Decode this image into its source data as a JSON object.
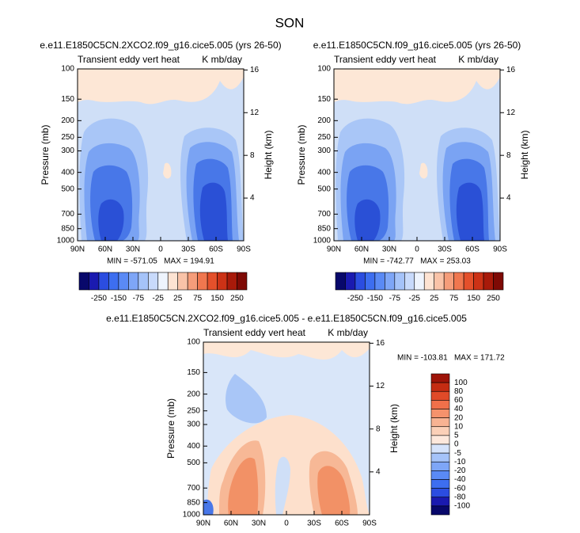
{
  "title": "SON",
  "chart_data": [
    {
      "type": "contour",
      "title": "e.e11.E1850C5CN.2XCO2.f09_g16.cice5.005 (yrs 26-50)",
      "left_string": "Transient eddy vert heat",
      "right_string": "K mb/day",
      "ylabel": "Pressure (mb)",
      "y2label": "Height (km)",
      "yscale": "log",
      "ylim": [
        1000,
        100
      ],
      "yticks": [
        1000,
        850,
        700,
        500,
        400,
        300,
        250,
        200,
        150,
        100
      ],
      "y2lim": [
        0,
        16.1
      ],
      "y2ticks": [
        4,
        8,
        12,
        16
      ],
      "xlim": [
        90,
        -90
      ],
      "xticks": [
        {
          "value": 90,
          "label": "90N"
        },
        {
          "value": 60,
          "label": "60N"
        },
        {
          "value": 30,
          "label": "30N"
        },
        0,
        {
          "value": -30,
          "label": "30S"
        },
        {
          "value": -60,
          "label": "60S"
        },
        {
          "value": -90,
          "label": "90S"
        }
      ],
      "min_max": "MIN = -571.05   MAX = 194.91",
      "colorbar": {
        "orientation": "horizontal",
        "colors": [
          "#08086b",
          "#1a1ab0",
          "#2b4de0",
          "#3d6ef0",
          "#5a8af5",
          "#7ea6f7",
          "#a5c3f9",
          "#c8dafb",
          "#eef4fd",
          "#fde3d2",
          "#f9c3a8",
          "#f59d7a",
          "#f0774f",
          "#e4502b",
          "#cc3216",
          "#a81a0a",
          "#7e0a05"
        ],
        "labels": [
          -250,
          -150,
          -75,
          -25,
          25,
          75,
          150,
          250
        ]
      }
    },
    {
      "type": "contour",
      "title": "e.e11.E1850C5CN.f09_g16.cice5.005 (yrs 26-50)",
      "left_string": "Transient eddy vert heat",
      "right_string": "K mb/day",
      "ylabel": "Pressure (mb)",
      "y2label": "Height (km)",
      "yscale": "log",
      "ylim": [
        1000,
        100
      ],
      "yticks": [
        1000,
        850,
        700,
        500,
        400,
        300,
        250,
        200,
        150,
        100
      ],
      "y2lim": [
        0,
        16.1
      ],
      "y2ticks": [
        4,
        8,
        12,
        16
      ],
      "xlim": [
        90,
        -90
      ],
      "xticks": [
        {
          "value": 90,
          "label": "90N"
        },
        {
          "value": 60,
          "label": "60N"
        },
        {
          "value": 30,
          "label": "30N"
        },
        0,
        {
          "value": -30,
          "label": "30S"
        },
        {
          "value": -60,
          "label": "60S"
        },
        {
          "value": -90,
          "label": "90S"
        }
      ],
      "min_max": "MIN = -742.77   MAX = 253.03",
      "colorbar": {
        "orientation": "horizontal",
        "colors": [
          "#08086b",
          "#1a1ab0",
          "#2b4de0",
          "#3d6ef0",
          "#5a8af5",
          "#7ea6f7",
          "#a5c3f9",
          "#c8dafb",
          "#eef4fd",
          "#fde3d2",
          "#f9c3a8",
          "#f59d7a",
          "#f0774f",
          "#e4502b",
          "#cc3216",
          "#a81a0a",
          "#7e0a05"
        ],
        "labels": [
          -250,
          -150,
          -75,
          -25,
          25,
          75,
          150,
          250
        ]
      }
    },
    {
      "type": "contour",
      "title": "e.e11.E1850C5CN.2XCO2.f09_g16.cice5.005 - e.e11.E1850C5CN.f09_g16.cice5.005",
      "left_string": "Transient eddy vert heat",
      "right_string": "K mb/day",
      "ylabel": "Pressure (mb)",
      "y2label": "Height (km)",
      "yscale": "log",
      "ylim": [
        1000,
        100
      ],
      "yticks": [
        1000,
        850,
        700,
        500,
        400,
        300,
        250,
        200,
        150,
        100
      ],
      "y2lim": [
        0,
        16.1
      ],
      "y2ticks": [
        4,
        8,
        12,
        16
      ],
      "xlim": [
        90,
        -90
      ],
      "xticks": [
        {
          "value": 90,
          "label": "90N"
        },
        {
          "value": 60,
          "label": "60N"
        },
        {
          "value": 30,
          "label": "30N"
        },
        0,
        {
          "value": -30,
          "label": "30S"
        },
        {
          "value": -60,
          "label": "60S"
        },
        {
          "value": -90,
          "label": "90S"
        }
      ],
      "min_max": "MIN = -103.81   MAX = 171.72",
      "colorbar": {
        "orientation": "vertical",
        "colors": [
          "#9e1408",
          "#c42c12",
          "#e04a28",
          "#f0704a",
          "#f5926c",
          "#f8b393",
          "#fbd0b8",
          "#fde8dc",
          "#d5e3fb",
          "#a5c3f9",
          "#7ea6f7",
          "#5a8af5",
          "#3d6ef0",
          "#2b4de0",
          "#1a1ab0",
          "#08086b"
        ],
        "labels": [
          100,
          80,
          60,
          40,
          20,
          10,
          5,
          0,
          -5,
          -10,
          -20,
          -40,
          -60,
          -80,
          -100
        ]
      }
    }
  ]
}
